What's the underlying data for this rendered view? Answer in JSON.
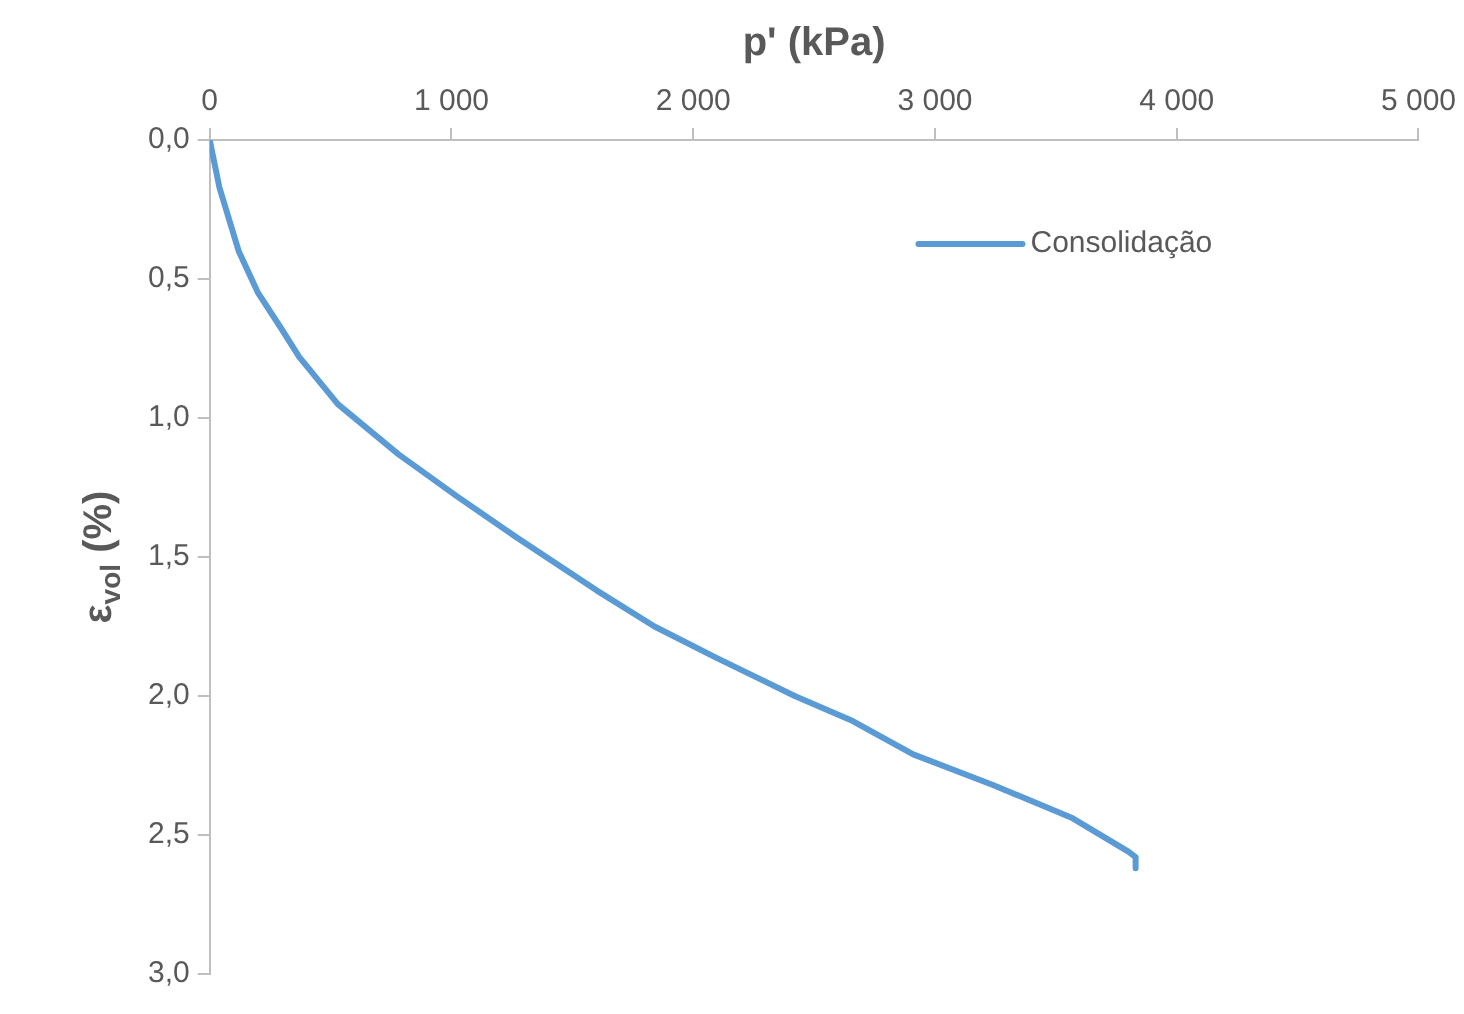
{
  "chart_data": {
    "type": "line",
    "xlabel": "p' (kPa)",
    "ylabel": "ε$_{vol}$ (%)",
    "xlim": [
      0,
      5000
    ],
    "xticks": [
      0,
      {
        "value": 1000,
        "label": "1 000"
      },
      {
        "value": 2000,
        "label": "2 000"
      },
      {
        "value": 3000,
        "label": "3 000"
      },
      {
        "value": 4000,
        "label": "4 000"
      },
      {
        "value": 5000,
        "label": "5 000"
      }
    ],
    "ylim": [
      3,
      0
    ],
    "yticks": [
      {
        "value": 0,
        "label": "0,0"
      },
      {
        "value": 0.5,
        "label": "0,5"
      },
      {
        "value": 1,
        "label": "1,0"
      },
      {
        "value": 1.5,
        "label": "1,5"
      },
      {
        "value": 2,
        "label": "2,0"
      },
      {
        "value": 2.5,
        "label": "2,5"
      },
      {
        "value": 3,
        "label": "3,0"
      }
    ],
    "legend": "top right",
    "marker": "none",
    "line_style": "solid",
    "series": [
      {
        "name": "Consolidação",
        "color": "#5b9bd5",
        "x": [
          0,
          40,
          120,
          200,
          290,
          370,
          530,
          780,
          1020,
          1270,
          1600,
          1840,
          2090,
          2420,
          2660,
          2910,
          3240,
          3570,
          3800,
          3830,
          3830
        ],
        "values": [
          0,
          0.17,
          0.4,
          0.55,
          0.67,
          0.78,
          0.95,
          1.13,
          1.28,
          1.43,
          1.62,
          1.75,
          1.86,
          2.0,
          2.09,
          2.21,
          2.32,
          2.44,
          2.56,
          2.58,
          2.62
        ]
      }
    ]
  }
}
